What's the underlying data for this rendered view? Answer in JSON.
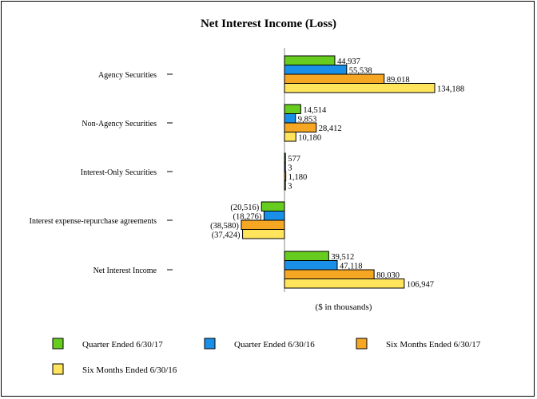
{
  "chart_data": {
    "type": "bar",
    "orientation": "horizontal",
    "title": "Net Interest Income (Loss)",
    "xlabel": "($ in thousands)",
    "ylabel": "",
    "xlim": [
      -50000,
      160000
    ],
    "grid": false,
    "legend_position": "bottom",
    "categories": [
      "Agency Securities",
      "Non-Agency Securities",
      "Interest-Only Securities",
      "Interest expense-repurchase agreements",
      "Net Interest Income"
    ],
    "series": [
      {
        "name": "Quarter Ended 6/30/17",
        "color": "#66cc1f",
        "values": [
          44937,
          14514,
          577,
          -20516,
          39512
        ],
        "labels": [
          "44,937",
          "14,514",
          "577",
          "(20,516)",
          "39,512"
        ]
      },
      {
        "name": "Quarter Ended 6/30/16",
        "color": "#1a8fe8",
        "values": [
          55538,
          9853,
          3,
          -18276,
          47118
        ],
        "labels": [
          "55,538",
          "9,853",
          "3",
          "(18,276)",
          "47,118"
        ]
      },
      {
        "name": "Six Months Ended 6/30/17",
        "color": "#f5a623",
        "values": [
          89018,
          28412,
          1180,
          -38580,
          80030
        ],
        "labels": [
          "89,018",
          "28,412",
          "1,180",
          "(38,580)",
          "80,030"
        ]
      },
      {
        "name": "Six Months Ended 6/30/16",
        "color": "#ffe45c",
        "values": [
          134188,
          10180,
          3,
          -37424,
          106947
        ],
        "labels": [
          "134,188",
          "10,180",
          "3",
          "(37,424)",
          "106,947"
        ]
      }
    ]
  }
}
